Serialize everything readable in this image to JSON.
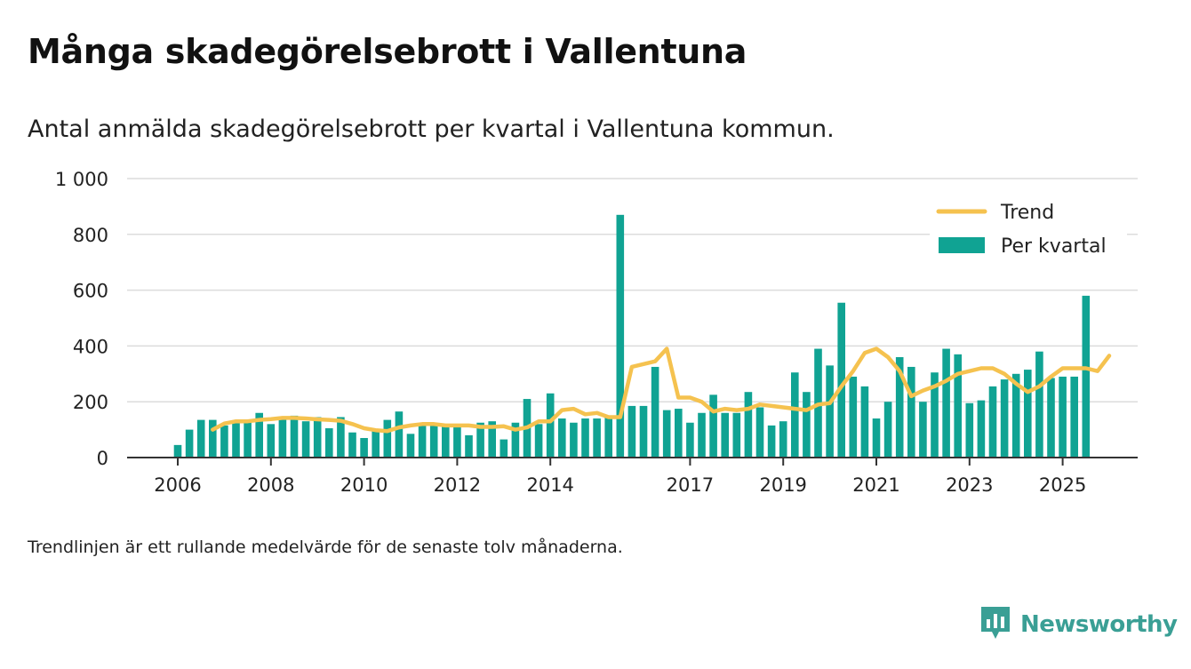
{
  "title": "Många skadegörelsebrott i Vallentuna",
  "subtitle": "Antal anmälda skadegörelsebrott per kvartal i Vallentuna kommun.",
  "note": "Trendlinjen är ett rullande medelvärde för de senaste tolv månaderna.",
  "brand": {
    "name": "Newsworthy",
    "icon": "newsworthy-logo-icon"
  },
  "colors": {
    "bar": "#10a393",
    "trend": "#f5c24f",
    "grid": "#dcdcdc",
    "axis": "#333333"
  },
  "chart_data": {
    "type": "bar",
    "title": "Många skadegörelsebrott i Vallentuna",
    "xlabel": "",
    "ylabel": "",
    "ylim": [
      0,
      1000
    ],
    "y_ticks": [
      0,
      200,
      400,
      600,
      800,
      1000
    ],
    "y_tick_labels": [
      "0",
      "200",
      "400",
      "600",
      "800",
      "1 000"
    ],
    "x_ticks": [
      {
        "label": "2006",
        "index": 0
      },
      {
        "label": "2008",
        "index": 8
      },
      {
        "label": "2010",
        "index": 16
      },
      {
        "label": "2012",
        "index": 24
      },
      {
        "label": "2014",
        "index": 32
      },
      {
        "label": "2017",
        "index": 44
      },
      {
        "label": "2019",
        "index": 52
      },
      {
        "label": "2021",
        "index": 60
      },
      {
        "label": "2023",
        "index": 68
      },
      {
        "label": "2025",
        "index": 76
      }
    ],
    "legend": {
      "position": "top-right",
      "entries": [
        "Trend",
        "Per kvartal"
      ]
    },
    "series": [
      {
        "name": "Per kvartal",
        "type": "bar",
        "values": [
          45,
          100,
          135,
          135,
          115,
          130,
          135,
          160,
          120,
          145,
          150,
          130,
          145,
          105,
          145,
          90,
          70,
          95,
          135,
          165,
          85,
          120,
          115,
          120,
          120,
          80,
          125,
          130,
          65,
          125,
          210,
          120,
          230,
          140,
          125,
          140,
          140,
          145,
          870,
          185,
          185,
          325,
          170,
          175,
          125,
          160,
          225,
          160,
          160,
          235,
          180,
          115,
          130,
          305,
          235,
          390,
          330,
          555,
          290,
          255,
          140,
          200,
          360,
          325,
          200,
          305,
          390,
          370,
          195,
          205,
          255,
          280,
          300,
          315,
          380,
          285,
          290,
          290,
          580
        ]
      },
      {
        "name": "Trend",
        "type": "line",
        "start_index": 3,
        "values": [
          100,
          122,
          130,
          130,
          135,
          138,
          142,
          142,
          140,
          137,
          135,
          132,
          120,
          105,
          98,
          95,
          108,
          115,
          120,
          120,
          115,
          115,
          115,
          110,
          110,
          112,
          100,
          108,
          130,
          130,
          170,
          175,
          155,
          160,
          145,
          145,
          325,
          335,
          345,
          390,
          215,
          215,
          200,
          165,
          175,
          170,
          175,
          190,
          185,
          180,
          175,
          170,
          190,
          195,
          255,
          310,
          375,
          390,
          360,
          310,
          220,
          240,
          255,
          275,
          300,
          310,
          320,
          320,
          300,
          265,
          235,
          255,
          290,
          320,
          320,
          320,
          310,
          365
        ]
      }
    ]
  }
}
